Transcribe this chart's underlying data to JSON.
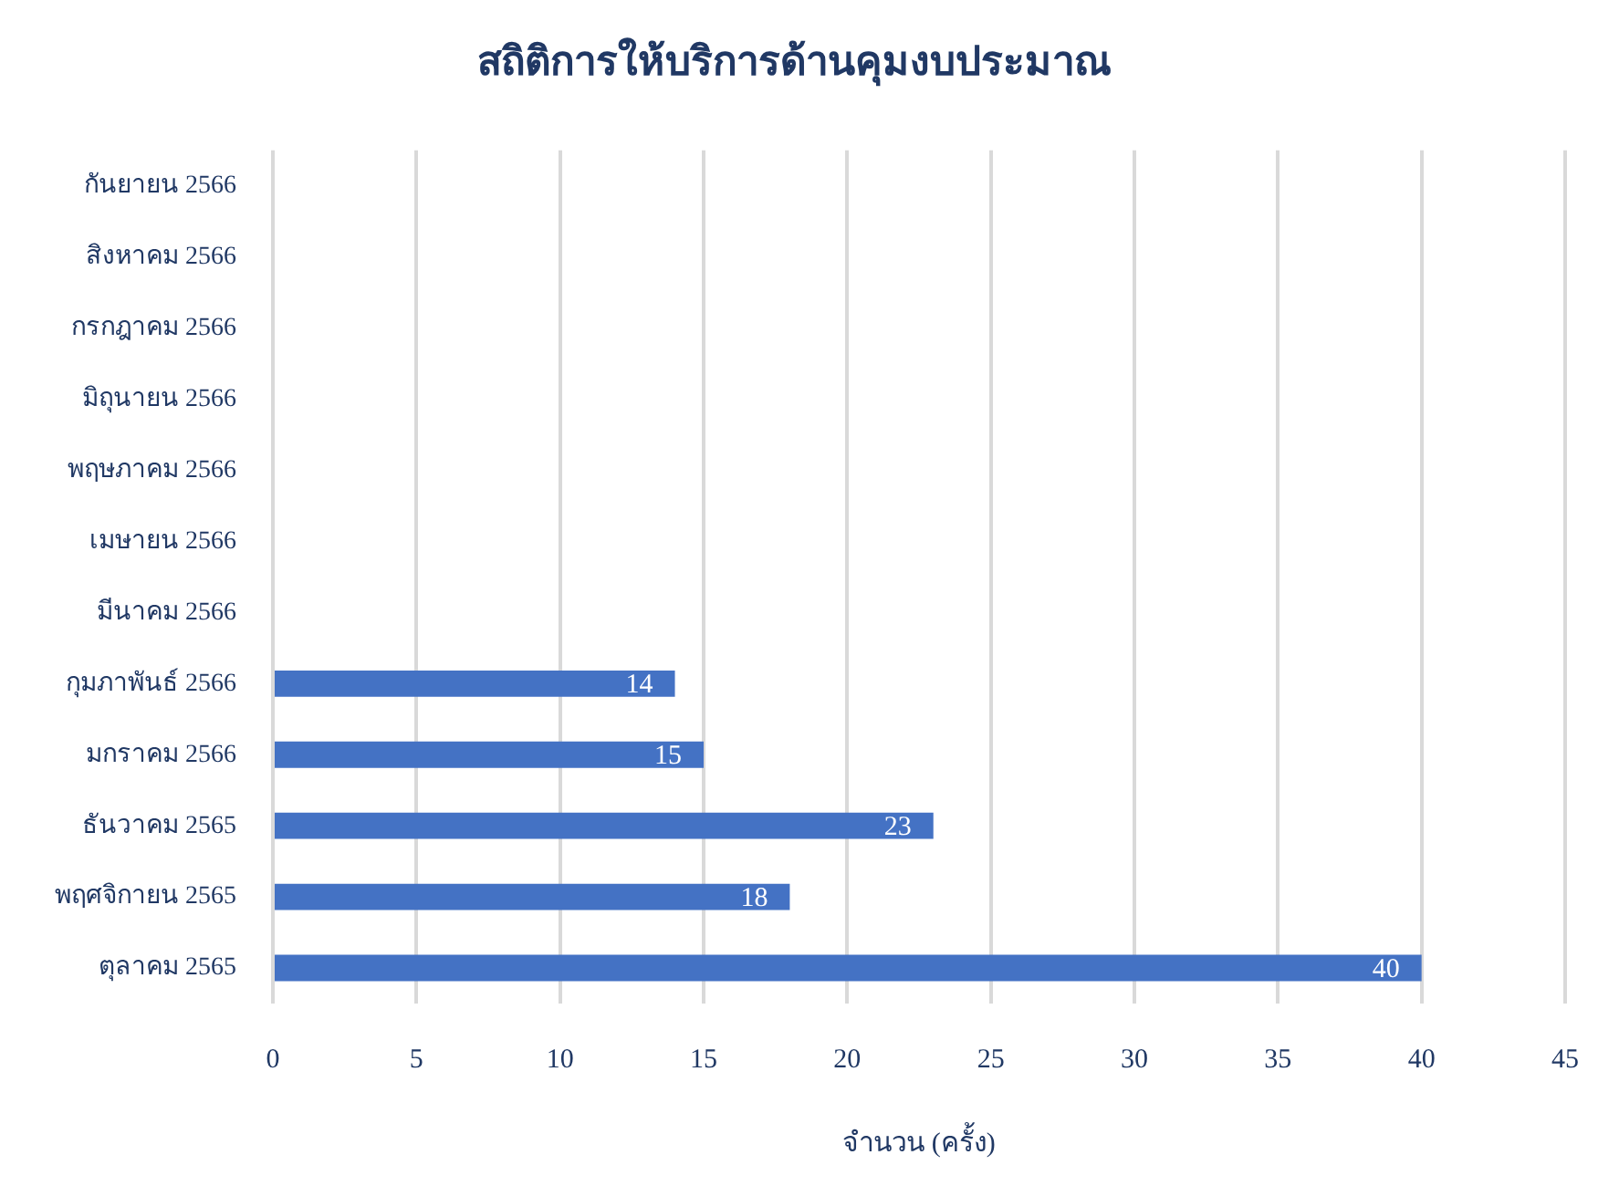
{
  "chart_data": {
    "type": "bar",
    "orientation": "horizontal",
    "title": "สถิติการให้บริการด้านคุมงบประมาณ",
    "xlabel": "จำนวน (ครั้ง)",
    "categories": [
      "กันยายน 2566",
      "สิงหาคม 2566",
      "กรกฎาคม 2566",
      "มิถุนายน 2566",
      "พฤษภาคม 2566",
      "เมษายน 2566",
      "มีนาคม 2566",
      "กุมภาพันธ์ 2566",
      "มกราคม 2566",
      "ธันวาคม 2565",
      "พฤศจิกายน 2565",
      "ตุลาคม 2565"
    ],
    "values": [
      null,
      null,
      null,
      null,
      null,
      null,
      null,
      14,
      15,
      23,
      18,
      40
    ],
    "color": "#4472c4",
    "xlim": [
      0,
      45
    ],
    "xticks": [
      0,
      5,
      10,
      15,
      20,
      25,
      30,
      35,
      40,
      45
    ],
    "grid": "x",
    "data_labels": true
  }
}
